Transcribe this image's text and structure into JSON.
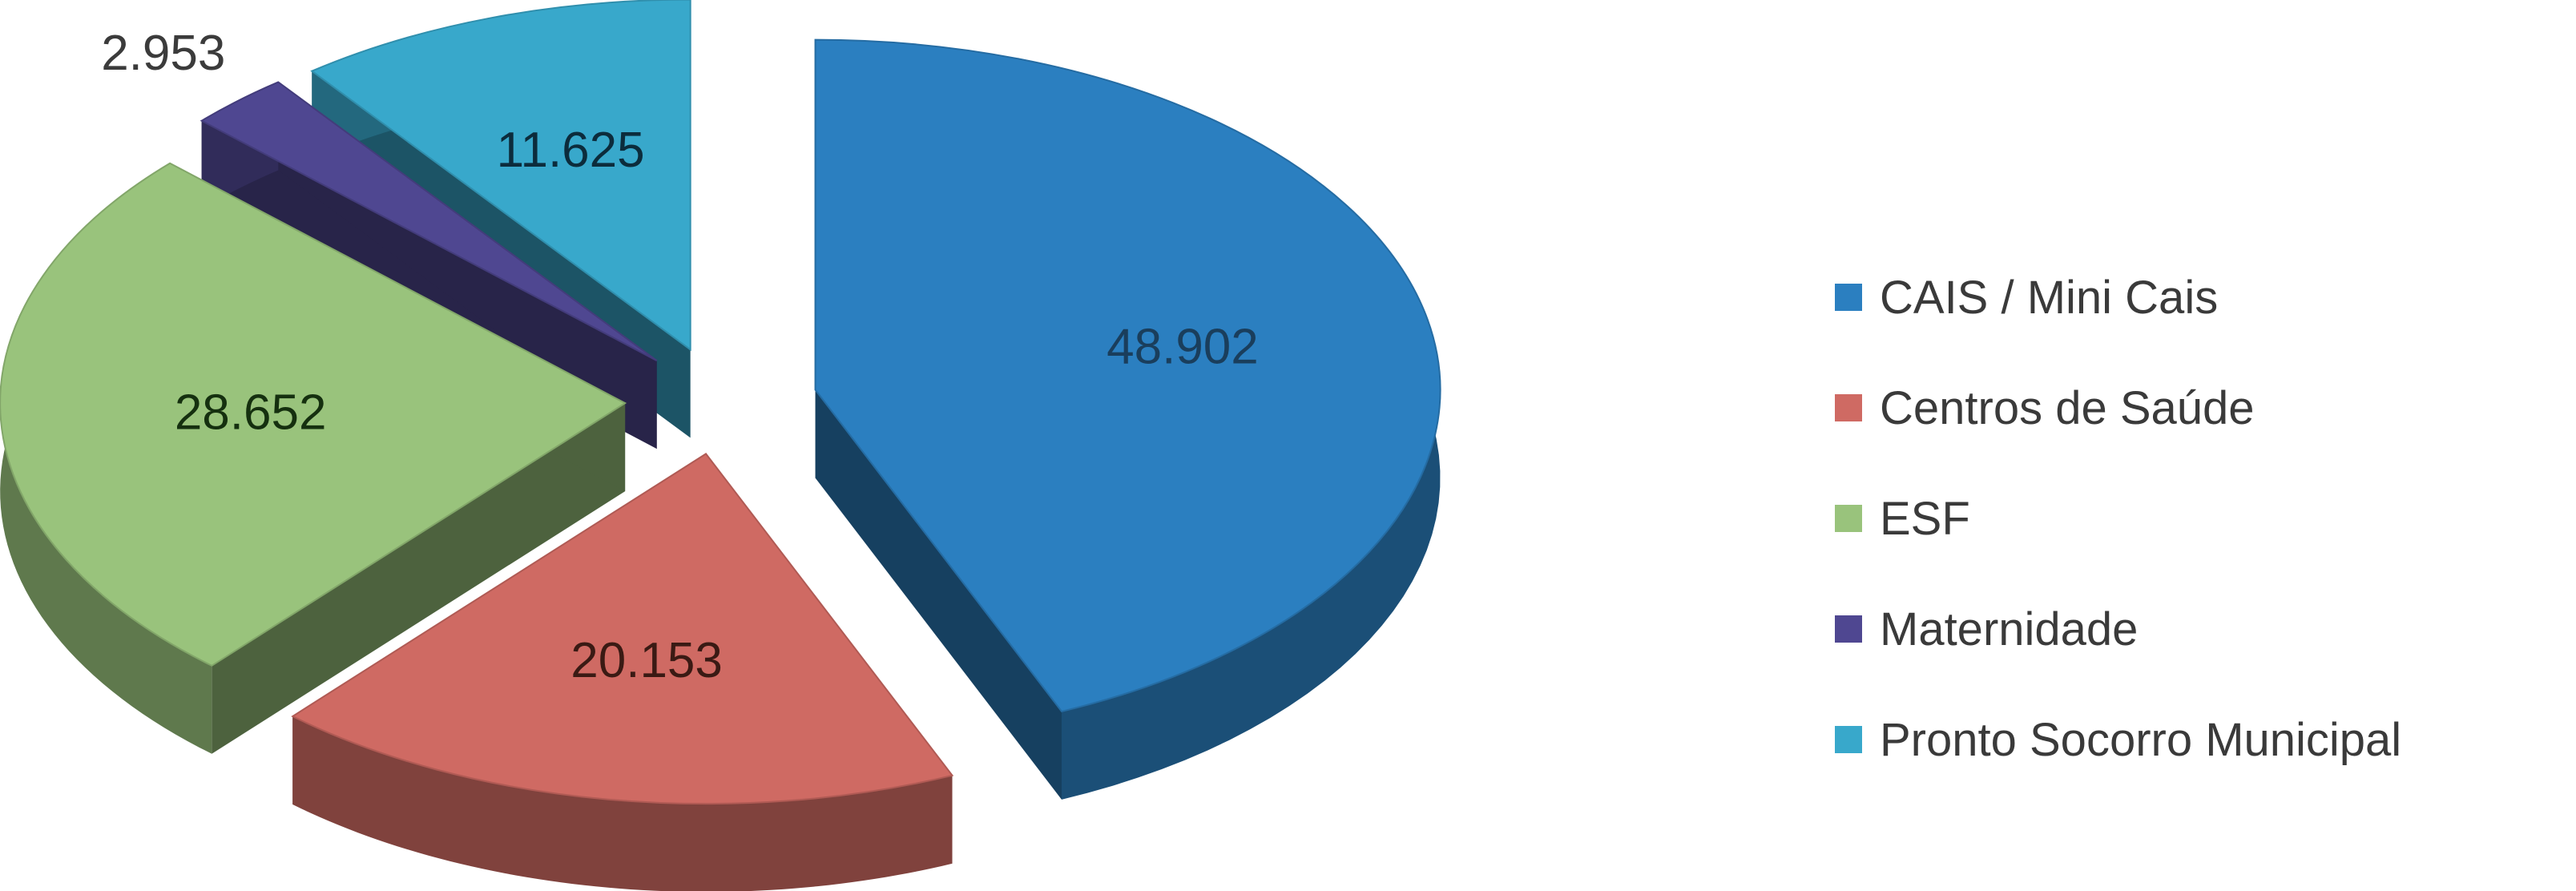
{
  "chart_data": {
    "type": "pie",
    "title": "",
    "categories": [
      "CAIS / Mini Cais",
      "Centros de Saúde",
      "ESF",
      "Maternidade",
      "Pronto Socorro Municipal"
    ],
    "values": [
      48902,
      20153,
      28652,
      2953,
      11625
    ],
    "data_labels": [
      "48.902",
      "20.153",
      "28.652",
      "2.953",
      "11.625"
    ],
    "colors": [
      "#2b7fc0",
      "#cf6a63",
      "#99c37c",
      "#4f4791",
      "#38a8cb"
    ],
    "label_colors": [
      "#1a3e5c",
      "#3a1a14",
      "#15300f",
      "#3b3b3b",
      "#0c2c3c"
    ],
    "exploded": true,
    "three_d": true,
    "legend": {
      "position": "right",
      "items": [
        {
          "label": "CAIS / Mini Cais",
          "color": "#2b7fc0"
        },
        {
          "label": "Centros de Saúde",
          "color": "#cf6a63"
        },
        {
          "label": "ESF",
          "color": "#99c37c"
        },
        {
          "label": "Maternidade",
          "color": "#4f4791"
        },
        {
          "label": "Pronto Socorro Municipal",
          "color": "#38a8cb"
        }
      ]
    }
  }
}
